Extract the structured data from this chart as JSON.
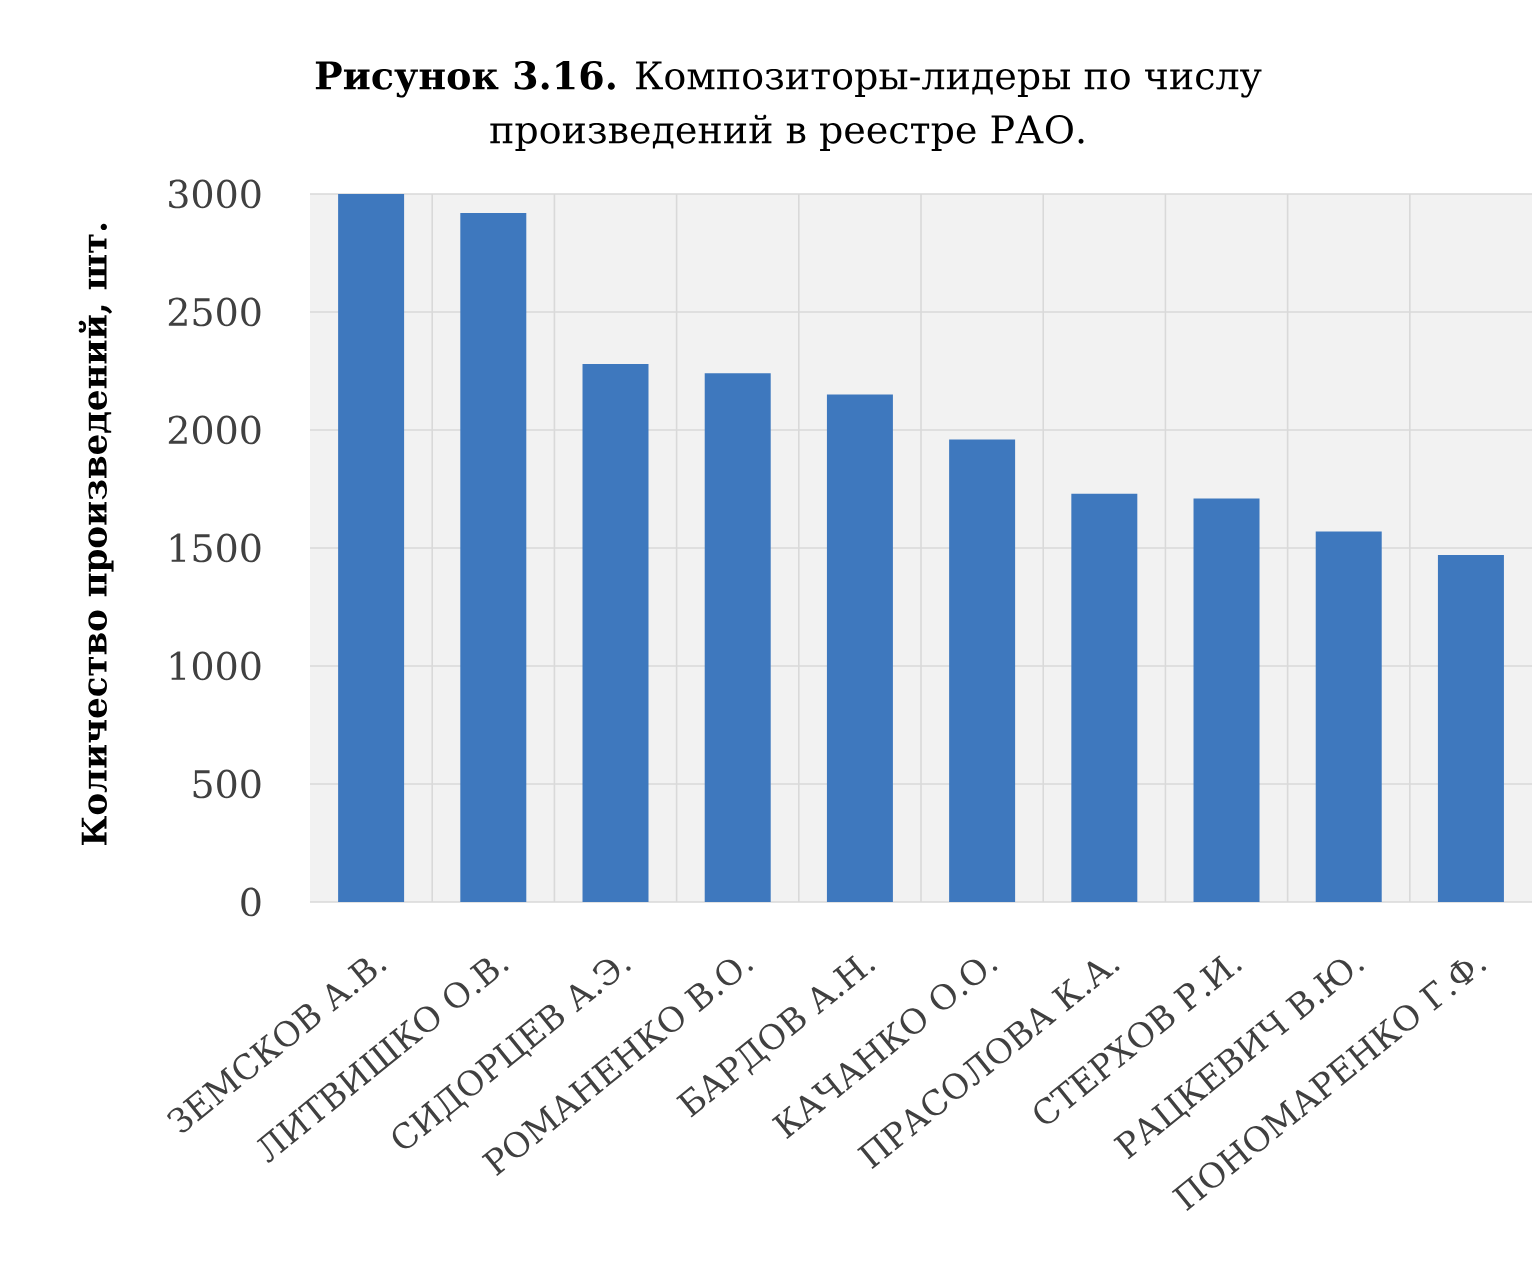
{
  "chart_data": {
    "type": "bar",
    "title": "**Рисунок 3.16.** Композиторы-лидеры по числу произведений в реестре РАО.",
    "ylabel": "Количество произведений, шт.",
    "categories": [
      "ЗЕМСКОВ А.В.",
      "ЛИТВИШКО О.В.",
      "СИДОРЦЕВ А.Э.",
      "РОМАНЕНКО В.О.",
      "БАРДОВ А.Н.",
      "КАЧАНКО О.О.",
      "ПРАСОЛОВА К.А.",
      "СТЕРХОВ Р.И.",
      "РАЦКЕВИЧ В.Ю.",
      "ПОНОМАРЕНКО Г.Ф."
    ],
    "values": [
      3000,
      2920,
      2280,
      2240,
      2150,
      1960,
      1730,
      1710,
      1570,
      1470
    ],
    "color": "#3e78be",
    "ylim": [
      0,
      3000
    ],
    "yticks": [
      0,
      500,
      1000,
      1500,
      2000,
      2500,
      3000
    ],
    "grid": true
  }
}
